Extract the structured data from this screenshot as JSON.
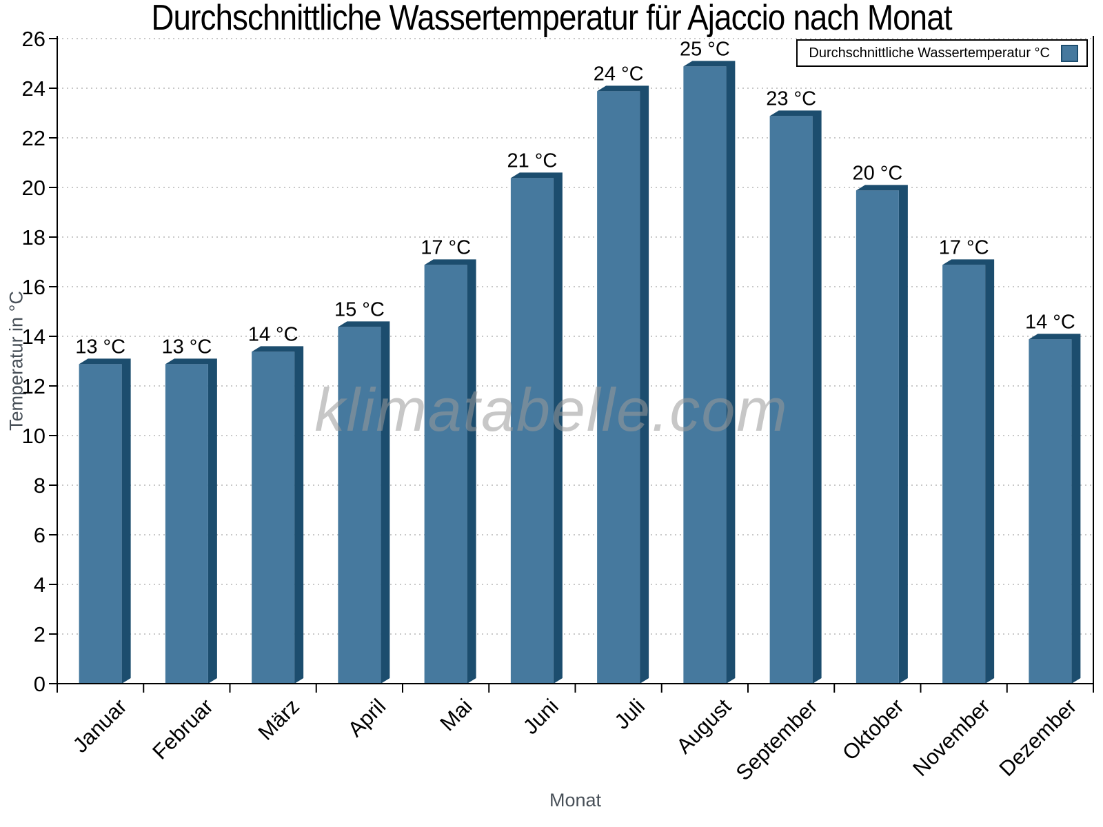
{
  "chart_data": {
    "type": "bar",
    "title": "Durchschnittliche Wassertemperatur für Ajaccio nach Monat",
    "xlabel": "Monat",
    "ylabel": "Temperatur in °C",
    "categories": [
      "Januar",
      "Februar",
      "März",
      "April",
      "Mai",
      "Juni",
      "Juli",
      "August",
      "September",
      "Oktober",
      "November",
      "Dezember"
    ],
    "values": [
      13,
      13,
      14,
      15,
      17,
      21,
      24,
      25,
      23,
      20,
      17,
      14
    ],
    "value_labels": [
      "13 °C",
      "13 °C",
      "14 °C",
      "15 °C",
      "17 °C",
      "21 °C",
      "24 °C",
      "25 °C",
      "23 °C",
      "20 °C",
      "17 °C",
      "14 °C"
    ],
    "plotted_values": [
      13.1,
      13.1,
      13.6,
      14.6,
      17.1,
      20.6,
      24.1,
      25.1,
      23.1,
      20.1,
      17.1,
      14.1
    ],
    "ylim": [
      0,
      26
    ],
    "ytick_step": 2,
    "yticks": [
      0,
      2,
      4,
      6,
      8,
      10,
      12,
      14,
      16,
      18,
      20,
      22,
      24,
      26
    ],
    "grid": {
      "horizontal": true,
      "style": "dotted"
    },
    "legend": {
      "label": "Durchschnittliche Wassertemperatur °C",
      "position": "top-right"
    },
    "watermark": "klimatabelle.com",
    "colors": {
      "bar_face": "#46799E",
      "bar_edge": "#1C4D6E",
      "grid": "#c8c8c8",
      "axis": "#000000",
      "axis_title": "#474F57",
      "text": "#000000",
      "watermark": "#9a9a9a",
      "background": "#ffffff"
    }
  }
}
